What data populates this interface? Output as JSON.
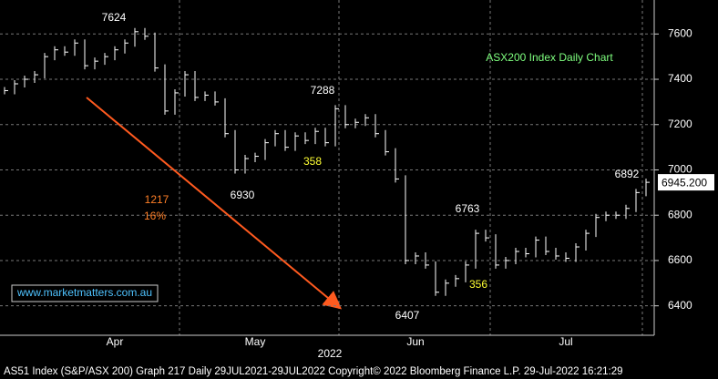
{
  "chart_data": {
    "type": "bar-line",
    "title": "ASX200 Index Daily Chart",
    "footer": "AS51 Index (S&P/ASX 200) Graph 217  Daily 29JUL2021-29JUL2022  Copyright© 2022 Bloomberg Finance L.P.  29-Jul-2022 16:21:29",
    "year_label": "2022",
    "watermark": "www.marketmatters.com.au",
    "categories": [
      null,
      null,
      null,
      null,
      null,
      null,
      null,
      null,
      null,
      null,
      null,
      "Apr",
      null,
      null,
      null,
      null,
      null,
      null,
      null,
      null,
      null,
      null,
      null,
      null,
      null,
      "May",
      null,
      null,
      null,
      null,
      null,
      null,
      null,
      null,
      null,
      null,
      null,
      null,
      null,
      null,
      null,
      "Jun",
      null,
      null,
      null,
      null,
      null,
      null,
      null,
      null,
      null,
      null,
      null,
      null,
      null,
      null,
      "Jul",
      null,
      null,
      null,
      null,
      null,
      null,
      null,
      null
    ],
    "series": [
      {
        "name": "AS51 Index",
        "color": "#ffffff",
        "values": [
          7350,
          7380,
          7400,
          7420,
          7500,
          7530,
          7520,
          7560,
          7460,
          7480,
          7500,
          7530,
          7560,
          7610,
          7590,
          7450,
          7260,
          7340,
          7420,
          7320,
          7330,
          7300,
          7160,
          7000,
          7050,
          7060,
          7120,
          7160,
          7100,
          7150,
          7130,
          7170,
          7120,
          7270,
          7200,
          7210,
          7230,
          7160,
          7080,
          6960,
          6600,
          6620,
          6580,
          6460,
          6500,
          6520,
          6580,
          6720,
          6700,
          6580,
          6600,
          6640,
          6630,
          6690,
          6640,
          6620,
          6610,
          6660,
          6720,
          6790,
          6800,
          6800,
          6830,
          6900,
          6945.2
        ],
        "value_labels": [
          null,
          null,
          null,
          null,
          null,
          null,
          null,
          null,
          null,
          null,
          null,
          null,
          null,
          null,
          null,
          null,
          null,
          null,
          null,
          null,
          null,
          null,
          null,
          null,
          null,
          null,
          null,
          null,
          null,
          null,
          null,
          null,
          null,
          null,
          null,
          null,
          null,
          null,
          null,
          null,
          null,
          null,
          null,
          null,
          null,
          null,
          null,
          null,
          null,
          null,
          null,
          null,
          null,
          null,
          null,
          null,
          null,
          null,
          null,
          null,
          null,
          null,
          null,
          null,
          "6945.200"
        ]
      }
    ],
    "annotations": [
      {
        "text": "7624",
        "color": "#ffffff"
      },
      {
        "text": "7288",
        "color": "#ffffff"
      },
      {
        "text": "6930",
        "color": "#ffffff"
      },
      {
        "text": "358",
        "color": "#ffff33"
      },
      {
        "text": "1217",
        "color": "#ff7f27"
      },
      {
        "text": "16%",
        "color": "#ff7f27"
      },
      {
        "text": "6763",
        "color": "#ffffff"
      },
      {
        "text": "356",
        "color": "#ffff33"
      },
      {
        "text": "6407",
        "color": "#ffffff"
      },
      {
        "text": "6892",
        "color": "#ffffff"
      }
    ],
    "ylim": [
      6270,
      7750
    ],
    "yticks": [
      6400,
      6600,
      6800,
      7000,
      7200,
      7400,
      7600
    ],
    "grid": true
  }
}
